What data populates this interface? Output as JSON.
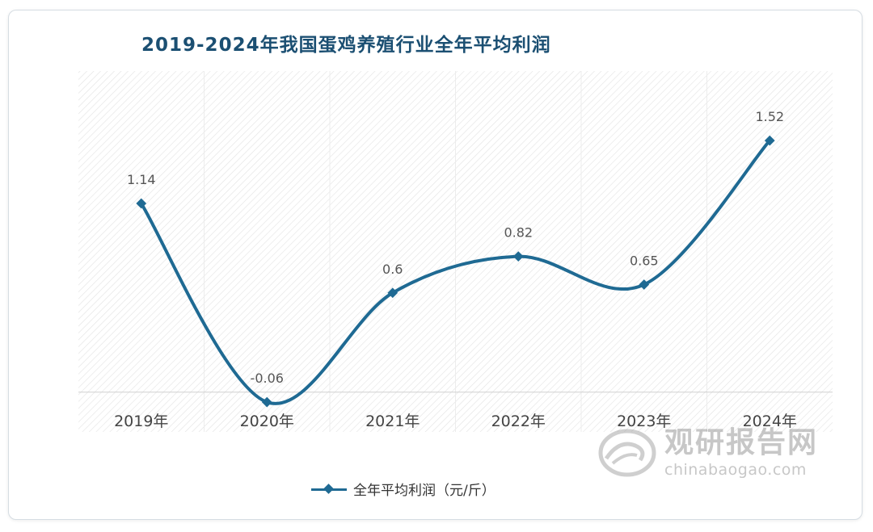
{
  "chart_data": {
    "type": "line",
    "title": "2019-2024年我国蛋鸡养殖行业全年平均利润",
    "categories": [
      "2019年",
      "2020年",
      "2021年",
      "2022年",
      "2023年",
      "2024年"
    ],
    "series": [
      {
        "name": "全年平均利润（元/斤）",
        "values": [
          1.14,
          -0.06,
          0.6,
          0.82,
          0.65,
          1.52
        ],
        "labels": [
          "1.14",
          "-0.06",
          "0.6",
          "0.82",
          "0.65",
          "1.52"
        ]
      }
    ],
    "ylim": [
      -0.24,
      1.94
    ],
    "grid": false,
    "legend_position": "bottom-center",
    "line_color": "#1f6a93",
    "axis_color": "#d0d0d0"
  },
  "watermark": {
    "name_cn": "观研报告网",
    "domain": "chinabaogao.com"
  }
}
